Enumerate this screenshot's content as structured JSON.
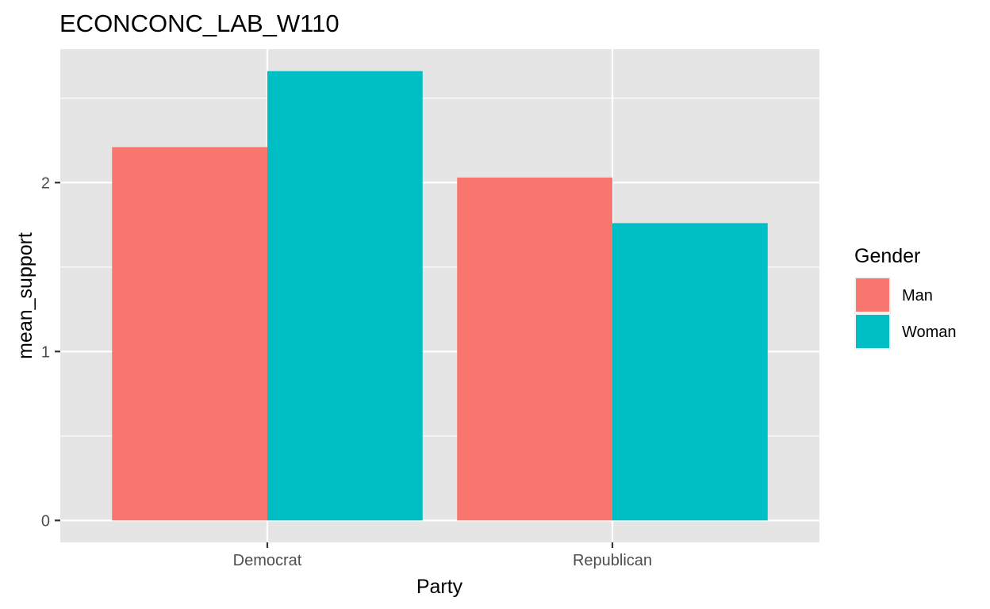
{
  "chart_data": {
    "type": "bar",
    "title": "ECONCONC_LAB_W110",
    "xlabel": "Party",
    "ylabel": "mean_support",
    "categories": [
      "Democrat",
      "Republican"
    ],
    "series": [
      {
        "name": "Man",
        "values": [
          2.21,
          2.03
        ],
        "color": "#F8766D"
      },
      {
        "name": "Woman",
        "values": [
          2.66,
          1.76
        ],
        "color": "#00BFC4"
      }
    ],
    "ylim": [
      -0.13,
      2.79
    ],
    "y_ticks": [
      0,
      1,
      2
    ],
    "grid": true,
    "legend": {
      "title": "Gender",
      "position": "right"
    },
    "colors": {
      "panel_bg": "#E5E5E5",
      "grid": "#FFFFFF",
      "tick": "#333333"
    }
  }
}
